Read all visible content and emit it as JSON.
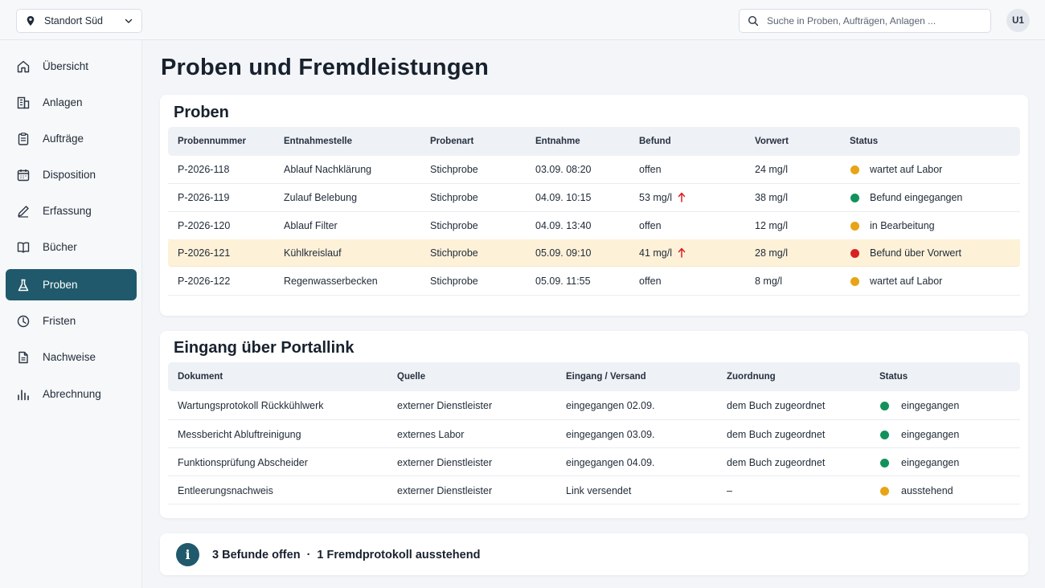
{
  "topbar": {
    "site": "Standort Süd",
    "search_placeholder": "Suche in Proben, Aufträgen, Anlagen ...",
    "avatar": "U1"
  },
  "sidebar": {
    "items": [
      {
        "label": "Übersicht",
        "icon": "home-icon"
      },
      {
        "label": "Anlagen",
        "icon": "building-icon"
      },
      {
        "label": "Aufträge",
        "icon": "clipboard-icon"
      },
      {
        "label": "Disposition",
        "icon": "calendar-icon"
      },
      {
        "label": "Erfassung",
        "icon": "pencil-icon"
      },
      {
        "label": "Bücher",
        "icon": "book-icon"
      },
      {
        "label": "Proben",
        "icon": "flask-icon",
        "active": true
      },
      {
        "label": "Fristen",
        "icon": "clock-icon"
      },
      {
        "label": "Nachweise",
        "icon": "document-icon"
      },
      {
        "label": "Abrechnung",
        "icon": "bar-chart-icon"
      }
    ]
  },
  "page": {
    "title": "Proben und Fremdleistungen"
  },
  "proben": {
    "title": "Proben",
    "columns": [
      "Probennummer",
      "Entnahmestelle",
      "Probenart",
      "Entnahme",
      "Befund",
      "Vorwert",
      "Status"
    ],
    "rows": [
      {
        "nr": "P-2026-118",
        "stelle": "Ablauf Nachklärung",
        "art": "Stichprobe",
        "entnahme": "03.09. 08:20",
        "befund": "offen",
        "exceeded": false,
        "vorwert": "24 mg/l",
        "status": "wartet auf Labor",
        "status_color": "#e8a317"
      },
      {
        "nr": "P-2026-119",
        "stelle": "Zulauf Belebung",
        "art": "Stichprobe",
        "entnahme": "04.09. 10:15",
        "befund": "53 mg/l",
        "exceeded": true,
        "vorwert": "38 mg/l",
        "status": "Befund eingegangen",
        "status_color": "#12925a"
      },
      {
        "nr": "P-2026-120",
        "stelle": "Ablauf Filter",
        "art": "Stichprobe",
        "entnahme": "04.09. 13:40",
        "befund": "offen",
        "exceeded": false,
        "vorwert": "12 mg/l",
        "status": "in Bearbeitung",
        "status_color": "#e8a317"
      },
      {
        "nr": "P-2026-121",
        "stelle": "Kühlkreislauf",
        "art": "Stichprobe",
        "entnahme": "05.09. 09:10",
        "befund": "41 mg/l",
        "exceeded": true,
        "vorwert": "28 mg/l",
        "status": "Befund über Vorwert",
        "status_color": "#d92020",
        "highlight": true
      },
      {
        "nr": "P-2026-122",
        "stelle": "Regenwasserbecken",
        "art": "Stichprobe",
        "entnahme": "05.09. 11:55",
        "befund": "offen",
        "exceeded": false,
        "vorwert": "8 mg/l",
        "status": "wartet auf Labor",
        "status_color": "#e8a317"
      }
    ]
  },
  "portal": {
    "title": "Eingang über Portallink",
    "columns": [
      "Dokument",
      "Quelle",
      "Eingang / Versand",
      "Zuordnung",
      "Status"
    ],
    "rows": [
      {
        "dokument": "Wartungsprotokoll Rückkühlwerk",
        "quelle": "externer Dienstleister",
        "eingang": "eingegangen 02.09.",
        "zuordnung": "dem Buch zugeordnet",
        "status": "eingegangen",
        "status_color": "#12925a"
      },
      {
        "dokument": "Messbericht Abluftreinigung",
        "quelle": "externes Labor",
        "eingang": "eingegangen 03.09.",
        "zuordnung": "dem Buch zugeordnet",
        "status": "eingegangen",
        "status_color": "#12925a"
      },
      {
        "dokument": "Funktionsprüfung Abscheider",
        "quelle": "externer Dienstleister",
        "eingang": "eingegangen 04.09.",
        "zuordnung": "dem Buch zugeordnet",
        "status": "eingegangen",
        "status_color": "#12925a"
      },
      {
        "dokument": "Entleerungsnachweis",
        "quelle": "externer Dienstleister",
        "eingang": "Link versendet",
        "zuordnung": "–",
        "status": "ausstehend",
        "status_color": "#e8a317"
      }
    ]
  },
  "summary": {
    "befunde": "3 Befunde offen",
    "separator": "·",
    "fremd": "1 Fremdprotokoll ausstehend"
  },
  "colors": {
    "accent": "#20596b",
    "highlight": "#fdf1d8",
    "arrow": "#d92020"
  }
}
